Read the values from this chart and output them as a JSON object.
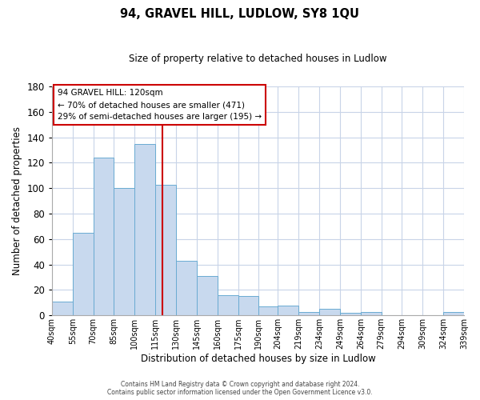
{
  "title": "94, GRAVEL HILL, LUDLOW, SY8 1QU",
  "subtitle": "Size of property relative to detached houses in Ludlow",
  "xlabel": "Distribution of detached houses by size in Ludlow",
  "ylabel": "Number of detached properties",
  "bar_heights": [
    11,
    65,
    124,
    100,
    135,
    103,
    43,
    31,
    16,
    15,
    7,
    8,
    3,
    5,
    2,
    3,
    0,
    0,
    0,
    3
  ],
  "bin_left_edges": [
    40,
    55,
    70,
    85,
    100,
    115,
    130,
    145,
    160,
    175,
    190,
    204,
    219,
    234,
    249,
    264,
    279,
    294,
    309,
    324
  ],
  "bin_width": 15,
  "tick_positions": [
    40,
    55,
    70,
    85,
    100,
    115,
    130,
    145,
    160,
    175,
    190,
    204,
    219,
    234,
    249,
    264,
    279,
    294,
    309,
    324,
    339
  ],
  "tick_labels": [
    "40sqm",
    "55sqm",
    "70sqm",
    "85sqm",
    "100sqm",
    "115sqm",
    "130sqm",
    "145sqm",
    "160sqm",
    "175sqm",
    "190sqm",
    "204sqm",
    "219sqm",
    "234sqm",
    "249sqm",
    "264sqm",
    "279sqm",
    "294sqm",
    "309sqm",
    "324sqm",
    "339sqm"
  ],
  "bar_color": "#c8d9ee",
  "bar_edge_color": "#6aabd2",
  "grid_color": "#c8d4e8",
  "ylim": [
    0,
    180
  ],
  "yticks": [
    0,
    20,
    40,
    60,
    80,
    100,
    120,
    140,
    160,
    180
  ],
  "xlim_left": 40,
  "xlim_right": 339,
  "property_sqm": 120,
  "vline_color": "#cc0000",
  "annotation_title": "94 GRAVEL HILL: 120sqm",
  "annotation_line1": "← 70% of detached houses are smaller (471)",
  "annotation_line2": "29% of semi-detached houses are larger (195) →",
  "annotation_box_facecolor": "#ffffff",
  "annotation_box_edgecolor": "#cc0000",
  "footer_line1": "Contains HM Land Registry data © Crown copyright and database right 2024.",
  "footer_line2": "Contains public sector information licensed under the Open Government Licence v3.0.",
  "background_color": "#ffffff"
}
